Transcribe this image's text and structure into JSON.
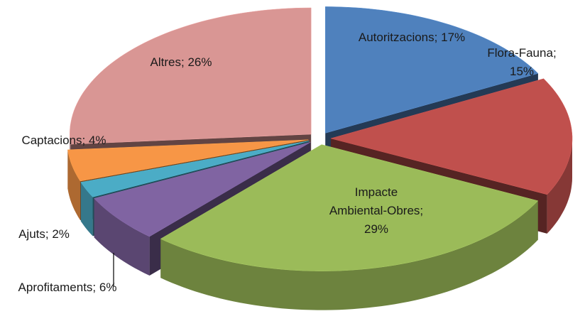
{
  "chart_data": {
    "type": "pie3d",
    "categories": [
      "Autoritzacions",
      "Flora-Fauna",
      "Impacte Ambiental-Obres",
      "Aprofitaments",
      "Ajuts",
      "Captacions",
      "Altres"
    ],
    "values": [
      17,
      15,
      29,
      6,
      2,
      4,
      26
    ],
    "value_labels": [
      "17%",
      "15%",
      "29%",
      "6%",
      "2%",
      "4%",
      "26%"
    ],
    "separator": ";",
    "colors": [
      "#4f81bd",
      "#c0504d",
      "#9bbb59",
      "#8064a2",
      "#4bacc6",
      "#f79646",
      "#d99694"
    ]
  }
}
